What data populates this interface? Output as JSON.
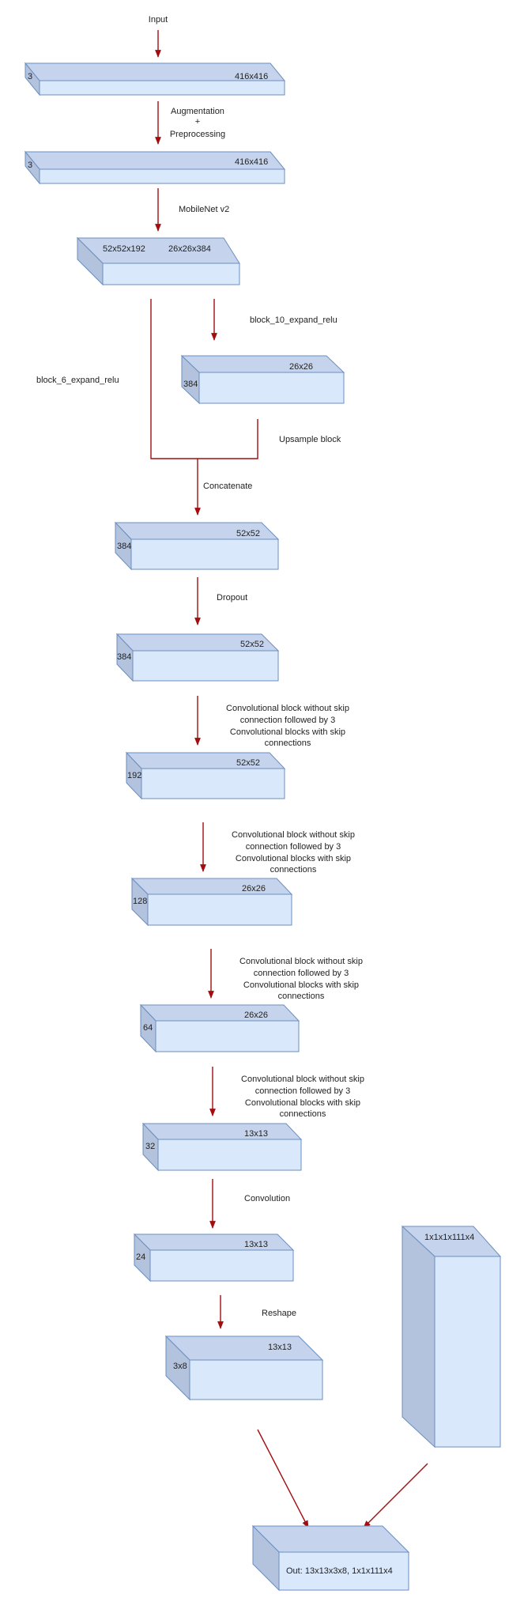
{
  "colors": {
    "box_fill": "#dae8fc",
    "box_stroke": "#6c8ebf",
    "arrow": "#a30d10"
  },
  "flow_labels": {
    "input": "Input",
    "augmentation_line1": "Augmentation",
    "augmentation_line2": "+",
    "augmentation_line3": "Preprocessing",
    "mobilenet": "MobileNet v2",
    "block_10": "block_10_expand_relu",
    "block_6": "block_6_expand_relu",
    "upsample": "Upsample block",
    "concatenate": "Concatenate",
    "dropout": "Dropout",
    "conv_block_1": [
      "Convolutional block without skip",
      "connection followed by 3",
      "Convolutional blocks with skip",
      "connections"
    ],
    "conv_block_2": [
      "Convolutional block without skip",
      "connection followed by 3",
      "Convolutional blocks with skip",
      "connections"
    ],
    "conv_block_3": [
      "Convolutional block without skip",
      "connection followed by 3",
      "Convolutional blocks with skip",
      "connections"
    ],
    "conv_block_4": [
      "Convolutional block without skip",
      "connection followed by 3",
      "Convolutional blocks with skip",
      "connections"
    ],
    "convolution": "Convolution",
    "reshape": "Reshape"
  },
  "blocks": {
    "input_tensor": {
      "depth": "3",
      "size": "416x416"
    },
    "preprocessed_tensor": {
      "depth": "3",
      "size": "416x416"
    },
    "mobilenet_output": {
      "size_a": "52x52x192",
      "size_b": "26x26x384"
    },
    "block10_tensor": {
      "depth": "384",
      "size": "26x26"
    },
    "concat_tensor": {
      "depth": "384",
      "size": "52x52"
    },
    "dropout_tensor": {
      "depth": "384",
      "size": "52x52"
    },
    "conv1_tensor": {
      "depth": "192",
      "size": "52x52"
    },
    "conv2_tensor": {
      "depth": "128",
      "size": "26x26"
    },
    "conv3_tensor": {
      "depth": "64",
      "size": "26x26"
    },
    "conv4_tensor": {
      "depth": "32",
      "size": "13x13"
    },
    "conv5_tensor": {
      "depth": "24",
      "size": "13x13"
    },
    "reshape_tensor": {
      "depth": "3x8",
      "size": "13x13"
    },
    "side_tensor": {
      "size": "1x1x1x111x4"
    },
    "output_tensor": {
      "label": "Out: 13x13x3x8, 1x1x111x4"
    }
  }
}
